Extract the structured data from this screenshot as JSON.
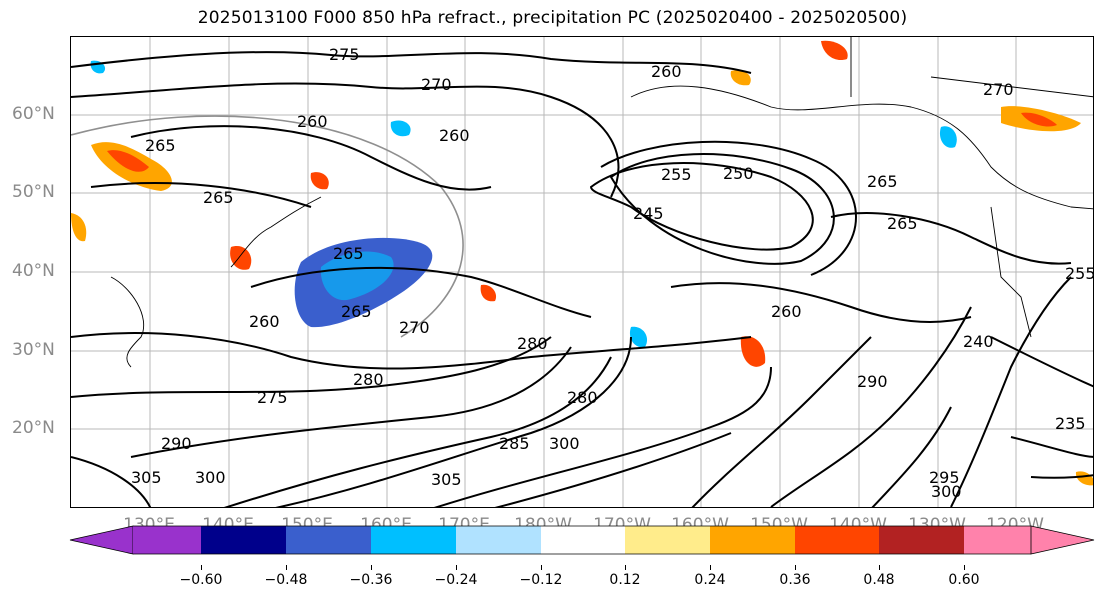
{
  "title": "2025013100 F000 850 hPa refract., precipitation PC (2025020400 - 2025020500)",
  "lat_labels": [
    "60°N",
    "50°N",
    "40°N",
    "30°N",
    "20°N"
  ],
  "lon_labels": [
    "130°E",
    "140°E",
    "150°E",
    "160°E",
    "170°E",
    "180°W",
    "170°W",
    "160°W",
    "150°W",
    "140°W",
    "130°W",
    "120°W"
  ],
  "colorbar": {
    "ticks": [
      "−0.60",
      "−0.48",
      "−0.36",
      "−0.24",
      "−0.12",
      "0.12",
      "0.24",
      "0.36",
      "0.48",
      "0.60"
    ],
    "colors": [
      "#9932cc",
      "#00008b",
      "#3a5fcd",
      "#00bfff",
      "#b0e2ff",
      "#ffffff",
      "#ffec8b",
      "#ffa500",
      "#ff4500",
      "#b22222",
      "#ff82ab"
    ]
  },
  "contour_labels": [
    "275",
    "270",
    "260",
    "260",
    "265",
    "265",
    "265",
    "260",
    "255",
    "250",
    "245",
    "265",
    "265",
    "270",
    "260",
    "265",
    "260",
    "270",
    "280",
    "275",
    "280",
    "280",
    "290",
    "285",
    "300",
    "305",
    "300",
    "295",
    "300",
    "305",
    "240",
    "235",
    "255",
    "290"
  ]
}
